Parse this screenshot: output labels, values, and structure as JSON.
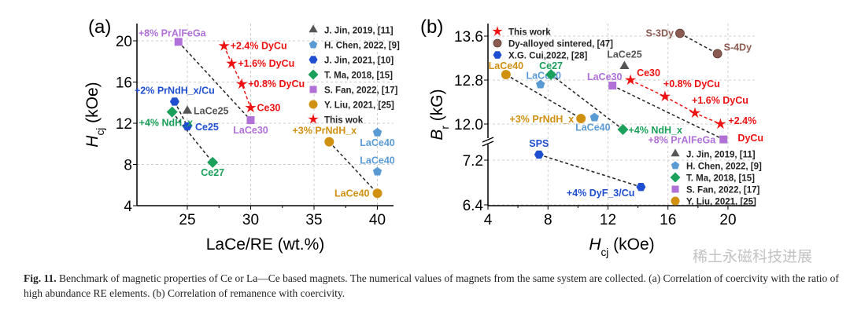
{
  "chart_data": [
    {
      "panel": "(a)",
      "type": "scatter",
      "xlabel": "LaCe/RE (wt.%)",
      "ylabel": {
        "symbol": "H",
        "sub": "cj",
        "unit": " (kOe)"
      },
      "xlim": [
        21,
        41.5
      ],
      "ylim": [
        4,
        21
      ],
      "xticks": [
        25,
        30,
        35,
        40
      ],
      "yticks": [
        4,
        8,
        12,
        16,
        20
      ],
      "grid": true,
      "legend": "top-right",
      "series": [
        {
          "name": "J. Jin, 2019, [11]",
          "marker": "triangle",
          "color": "#555555",
          "connected": false,
          "points": [
            {
              "x": 25,
              "y": 13.2,
              "label": "LaCe25"
            }
          ]
        },
        {
          "name": "H. Chen, 2022, [9]",
          "marker": "pentagon",
          "color": "#5b9bd5",
          "connected": false,
          "points": [
            {
              "x": 40,
              "y": 11.1,
              "label": "LaCe40"
            },
            {
              "x": 40,
              "y": 7.3,
              "label": "LaCe40"
            }
          ]
        },
        {
          "name": "J. Jin, 2021, [10]",
          "marker": "hexagon",
          "color": "#1f4fd0",
          "connected": true,
          "points": [
            {
              "x": 24,
              "y": 14.1,
              "label": "+2% PrNdH_x/Cu"
            },
            {
              "x": 25,
              "y": 11.7,
              "label": "Ce25"
            }
          ]
        },
        {
          "name": "T. Ma, 2018, [15]",
          "marker": "diamond",
          "color": "#1aa05a",
          "connected": true,
          "points": [
            {
              "x": 23.8,
              "y": 13.1,
              "label": "+4% NdH_x"
            },
            {
              "x": 27,
              "y": 8.2,
              "label": "Ce27"
            }
          ]
        },
        {
          "name": "S. Fan, 2022, [17]",
          "marker": "square",
          "color": "#b070d8",
          "connected": true,
          "points": [
            {
              "x": 24.3,
              "y": 19.9,
              "label": "+8% PrAlFeGa"
            },
            {
              "x": 30,
              "y": 12.3,
              "label": "LaCe30"
            }
          ]
        },
        {
          "name": "Y. Liu, 2021, [25]",
          "marker": "circle",
          "color": "#d09010",
          "connected": true,
          "points": [
            {
              "x": 36.2,
              "y": 10.2,
              "label": "+3% PrNdH_x"
            },
            {
              "x": 40,
              "y": 5.2,
              "label": "LaCe40"
            }
          ]
        },
        {
          "name": "This wok",
          "marker": "star",
          "color": "#ee1111",
          "connected": true,
          "points": [
            {
              "x": 27.9,
              "y": 19.5,
              "label": "+2.4% DyCu"
            },
            {
              "x": 28.5,
              "y": 17.8,
              "label": "+1.6% DyCu"
            },
            {
              "x": 29.3,
              "y": 15.8,
              "label": "+0.8% DyCu"
            },
            {
              "x": 30,
              "y": 13.5,
              "label": "Ce30"
            }
          ]
        }
      ]
    },
    {
      "panel": "(b)",
      "type": "scatter",
      "xlabel": {
        "symbol": "H",
        "sub": "cj",
        "unit": " (kOe)"
      },
      "ylabel": {
        "symbol": "B",
        "sub": "r",
        "unit": " (kG)"
      },
      "xlim": [
        4,
        21.5
      ],
      "ylim_segments": [
        [
          6.4,
          7.5
        ],
        [
          11.6,
          13.8
        ]
      ],
      "xticks": [
        4,
        8,
        12,
        16,
        20
      ],
      "yticks": [
        6.4,
        7.2,
        12.0,
        12.8,
        13.6
      ],
      "grid": true,
      "legend": "top-left and bottom-right",
      "series": [
        {
          "name": "This work",
          "marker": "star",
          "color": "#ee1111",
          "connected": true,
          "legendGroup": 1,
          "points": [
            {
              "x": 13.5,
              "y": 12.8,
              "label": "Ce30"
            },
            {
              "x": 15.8,
              "y": 12.5,
              "label": "+0.8% DyCu"
            },
            {
              "x": 17.8,
              "y": 12.2,
              "label": "+1.6% DyCu"
            },
            {
              "x": 19.5,
              "y": 12.0,
              "label": "+2.4%",
              "label2": "DyCu"
            }
          ]
        },
        {
          "name": "Dy-alloyed sintered, [47]",
          "marker": "ball",
          "color": "#8b5a50",
          "connected": true,
          "legendGroup": 1,
          "points": [
            {
              "x": 16.8,
              "y": 13.65,
              "label": "S-3Dy"
            },
            {
              "x": 19.3,
              "y": 13.28,
              "label": "S-4Dy"
            }
          ]
        },
        {
          "name": "X.G. Cui,2022, [28]",
          "marker": "hexagon",
          "color": "#1f4fd0",
          "connected": true,
          "legendGroup": 1,
          "points": [
            {
              "x": 7.4,
              "y": 7.3,
              "label": "SPS"
            },
            {
              "x": 14.2,
              "y": 6.72,
              "label": "+4% DyF_3/Cu"
            }
          ]
        },
        {
          "name": "J. Jin, 2019, [11]",
          "marker": "triangle",
          "color": "#555555",
          "connected": false,
          "legendGroup": 2,
          "points": [
            {
              "x": 13.1,
              "y": 13.05,
              "label": "LaCe25"
            }
          ]
        },
        {
          "name": "H. Chen, 2022, [9]",
          "marker": "pentagon",
          "color": "#5b9bd5",
          "connected": false,
          "legendGroup": 2,
          "points": [
            {
              "x": 7.5,
              "y": 12.72,
              "label": "LaCe40"
            },
            {
              "x": 11.1,
              "y": 12.12,
              "label": "LaCe40"
            }
          ]
        },
        {
          "name": "T. Ma, 2018, [15]",
          "marker": "diamond",
          "color": "#1aa05a",
          "connected": true,
          "legendGroup": 2,
          "points": [
            {
              "x": 8.2,
              "y": 12.9,
              "label": "Ce27"
            },
            {
              "x": 13.0,
              "y": 11.9,
              "label": "+4% NdH_x"
            }
          ]
        },
        {
          "name": "S. Fan, 2022, [17]",
          "marker": "square",
          "color": "#b070d8",
          "connected": true,
          "legendGroup": 2,
          "points": [
            {
              "x": 12.3,
              "y": 12.7,
              "label": "LaCe30"
            },
            {
              "x": 19.7,
              "y": 11.72,
              "label": "+8% PrAlFeGa"
            }
          ]
        },
        {
          "name": "Y. Liu, 2021, [25]",
          "marker": "circle",
          "color": "#d09010",
          "connected": true,
          "legendGroup": 2,
          "points": [
            {
              "x": 5.2,
              "y": 12.9,
              "label": "LaCe40"
            },
            {
              "x": 10.2,
              "y": 12.1,
              "label": "+3% PrNdH_x"
            }
          ]
        }
      ]
    }
  ],
  "caption": {
    "fig": "Fig. 11.",
    "text": " Benchmark of magnetic properties of Ce or La—Ce based magnets. The numerical values of magnets from the same system are collected. (a) Correlation of coercivity with the ratio of high abundance RE elements. (b) Correlation of remanence with coercivity."
  },
  "watermark": "稀土永磁科技进展"
}
